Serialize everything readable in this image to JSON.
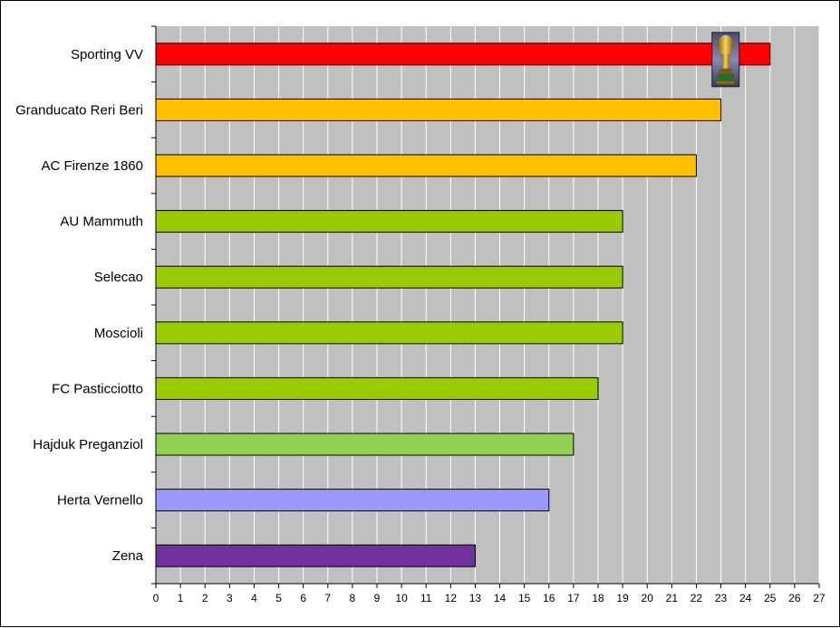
{
  "chart_data": {
    "type": "bar",
    "orientation": "horizontal",
    "title": "",
    "xlabel": "",
    "ylabel": "",
    "categories": [
      "Sporting VV",
      "Granducato Reri Beri",
      "AC Firenze 1860",
      "AU Mammuth",
      "Selecao",
      "Moscioli",
      "FC Pasticciotto",
      "Hajduk Preganziol",
      "Herta Vernello",
      "Zena"
    ],
    "values": [
      25,
      23,
      22,
      19,
      19,
      19,
      18,
      17,
      16,
      13
    ],
    "bar_colors": [
      "#ff0000",
      "#ffc000",
      "#ffc000",
      "#99cc00",
      "#99cc00",
      "#99cc00",
      "#99cc00",
      "#92d050",
      "#9999ff",
      "#7030a0"
    ],
    "xlim": [
      0,
      27
    ],
    "xticks": [
      0,
      1,
      2,
      3,
      4,
      5,
      6,
      7,
      8,
      9,
      10,
      11,
      12,
      13,
      14,
      15,
      16,
      17,
      18,
      19,
      20,
      21,
      22,
      23,
      24,
      25,
      26,
      27
    ],
    "grid": true,
    "plot_background": "#c0c0c0",
    "gridline_color": "#ffffff",
    "legend": "none",
    "annotation_icon": "trophy-icon"
  }
}
